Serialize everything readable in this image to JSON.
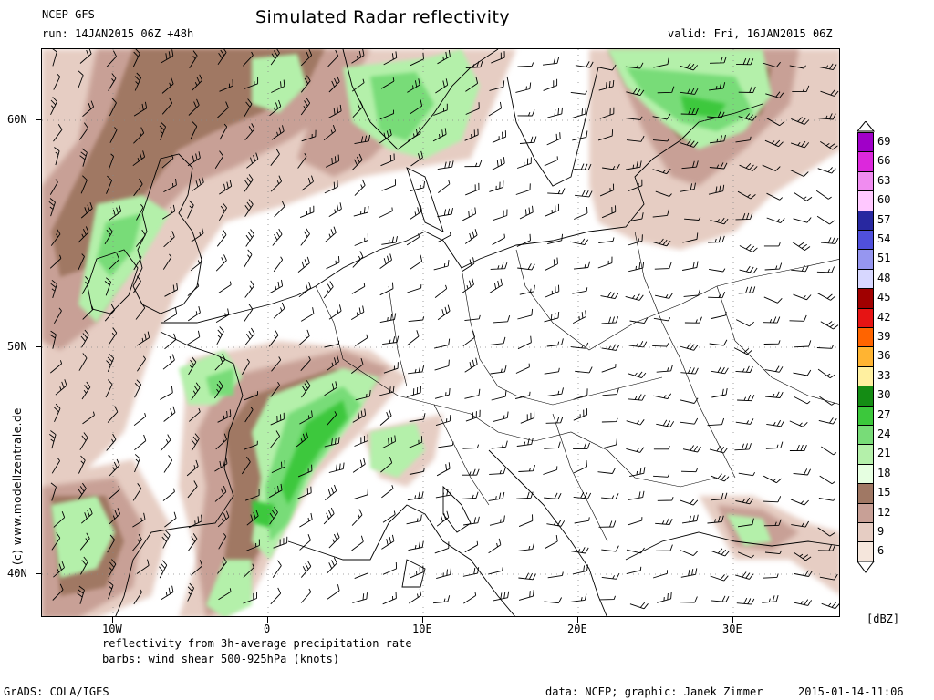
{
  "header": {
    "model": "NCEP GFS",
    "run": "run: 14JAN2015 06Z +48h",
    "title": "Simulated Radar reflectivity",
    "valid": "valid: Fri, 16JAN2015 06Z"
  },
  "axes": {
    "lat_labels": [
      "60N",
      "50N",
      "40N"
    ],
    "lon_labels": [
      "10W",
      "0",
      "10E",
      "20E",
      "30E"
    ]
  },
  "watermark": "(c) www.modellzentrale.de",
  "footer": {
    "line1": "reflectivity from 3h-average precipitation rate",
    "line2": "barbs: wind shear 500-925hPa (knots)",
    "grads": "GrADS: COLA/IGES",
    "credit": "data: NCEP; graphic: Janek Zimmer",
    "timestamp": "2015-01-14-11:06"
  },
  "legend": {
    "unit": "[dBZ]",
    "levels": [
      {
        "label": "69",
        "color": "#a000c8"
      },
      {
        "label": "66",
        "color": "#dc28dc"
      },
      {
        "label": "63",
        "color": "#f08cf0"
      },
      {
        "label": "60",
        "color": "#ffc8ff"
      },
      {
        "label": "57",
        "color": "#2828a0"
      },
      {
        "label": "54",
        "color": "#5050dc"
      },
      {
        "label": "51",
        "color": "#9696f0"
      },
      {
        "label": "48",
        "color": "#d7d7ff"
      },
      {
        "label": "45",
        "color": "#a00000"
      },
      {
        "label": "42",
        "color": "#e61414"
      },
      {
        "label": "39",
        "color": "#ff6400"
      },
      {
        "label": "36",
        "color": "#ffb432"
      },
      {
        "label": "33",
        "color": "#fff0a0"
      },
      {
        "label": "30",
        "color": "#148c14"
      },
      {
        "label": "27",
        "color": "#3cc83c"
      },
      {
        "label": "24",
        "color": "#78dc78"
      },
      {
        "label": "21",
        "color": "#b4f0aa"
      },
      {
        "label": "18",
        "color": "#e6ffe1"
      },
      {
        "label": "15",
        "color": "#a07864"
      },
      {
        "label": "12",
        "color": "#c8a096"
      },
      {
        "label": "9",
        "color": "#e6cdc3"
      },
      {
        "label": "6",
        "color": "#f5e6dc"
      }
    ]
  },
  "colors": {
    "precip_brown_dark": "#a07864",
    "precip_brown_mid": "#c8a096",
    "precip_brown_light": "#e6cdc3",
    "precip_green_light": "#b4f0aa",
    "precip_green_mid": "#78dc78",
    "precip_green_dark": "#3cc83c",
    "precip_green_deep": "#148c14"
  }
}
